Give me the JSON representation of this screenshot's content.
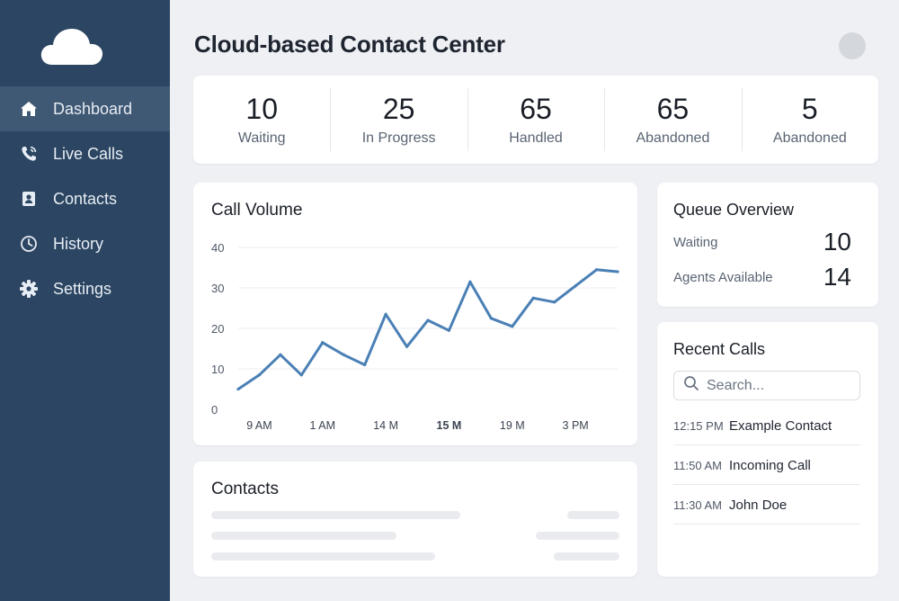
{
  "sidebar": {
    "logo_icon": "cloud-icon",
    "items": [
      {
        "label": "Dashboard",
        "icon": "home-icon",
        "active": true
      },
      {
        "label": "Live Calls",
        "icon": "phone-icon",
        "active": false
      },
      {
        "label": "Contacts",
        "icon": "contact-card-icon",
        "active": false
      },
      {
        "label": "History",
        "icon": "clock-icon",
        "active": false
      },
      {
        "label": "Settings",
        "icon": "gear-icon",
        "active": false
      }
    ]
  },
  "header": {
    "title": "Cloud-based Contact Center"
  },
  "stats": [
    {
      "value": "10",
      "label": "Waiting"
    },
    {
      "value": "25",
      "label": "In Progress"
    },
    {
      "value": "65",
      "label": "Handled"
    },
    {
      "value": "65",
      "label": "Abandoned"
    },
    {
      "value": "5",
      "label": "Abandoned"
    }
  ],
  "call_volume": {
    "title": "Call Volume"
  },
  "chart_data": {
    "type": "line",
    "title": "Call Volume",
    "xlabel": "",
    "ylabel": "",
    "ylim": [
      0,
      40
    ],
    "yticks": [
      0,
      10,
      20,
      30,
      40
    ],
    "x_tick_labels": [
      {
        "label": "9 AM",
        "index": 1,
        "bold": false
      },
      {
        "label": "1 AM",
        "index": 4,
        "bold": false
      },
      {
        "label": "14 M",
        "index": 7,
        "bold": false
      },
      {
        "label": "15 M",
        "index": 10,
        "bold": true
      },
      {
        "label": "19 M",
        "index": 13,
        "bold": false
      },
      {
        "label": "3 PM",
        "index": 16,
        "bold": false
      }
    ],
    "grid": true,
    "color": "#4a80b5",
    "series": [
      {
        "values": [
          5,
          8.5,
          13.5,
          8.5,
          16.5,
          13.5,
          11,
          23.5,
          15.5,
          22,
          19.5,
          31.5,
          22.5,
          20.5,
          27.5,
          26.5,
          30.5,
          34.5,
          34
        ]
      }
    ]
  },
  "contacts_card": {
    "title": "Contacts"
  },
  "queue": {
    "title": "Queue Overview",
    "rows": [
      {
        "label": "Waiting",
        "value": "10"
      },
      {
        "label": "Agents Available",
        "value": "14"
      }
    ]
  },
  "recent_calls": {
    "title": "Recent Calls",
    "search_placeholder": "Search...",
    "calls": [
      {
        "time": "12:15 PM",
        "name": "Example Contact"
      },
      {
        "time": "11:50 AM",
        "name": "Incoming Call"
      },
      {
        "time": "11:30 AM",
        "name": "John Doe"
      }
    ]
  }
}
